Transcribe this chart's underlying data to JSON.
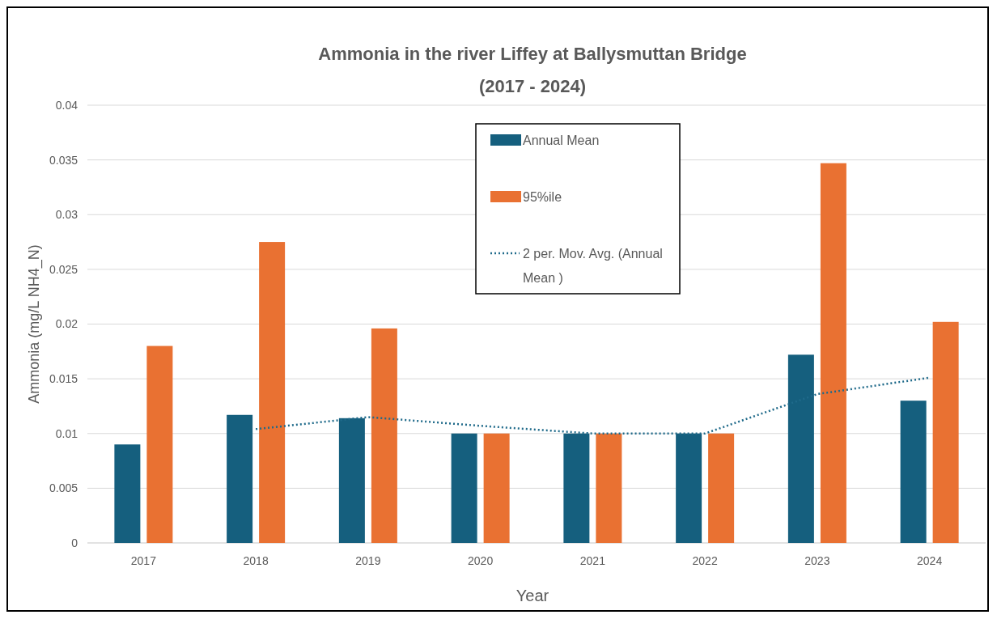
{
  "chart_data": {
    "type": "bar",
    "title": "Ammonia in the river Liffey at Ballysmuttan Bridge",
    "subtitle": "(2017 - 2024)",
    "xlabel": "Year",
    "ylabel": "Ammonia (mg/L NH4_N)",
    "categories": [
      "2017",
      "2018",
      "2019",
      "2020",
      "2021",
      "2022",
      "2023",
      "2024"
    ],
    "series": [
      {
        "name": "Annual Mean",
        "color": "#155f7e",
        "values": [
          0.009,
          0.0117,
          0.0114,
          0.01,
          0.01,
          0.01,
          0.0172,
          0.013
        ]
      },
      {
        "name": "95%ile",
        "color": "#e97132",
        "values": [
          0.018,
          0.0275,
          0.0196,
          0.01,
          0.01,
          0.01,
          0.0347,
          0.0202
        ]
      },
      {
        "name": "2 per. Mov. Avg. (Annual Mean )",
        "type": "line",
        "line_style": "dotted",
        "marker": "none",
        "color": "#1f6a8a",
        "values": [
          null,
          0.0104,
          0.0115,
          0.0107,
          0.01,
          0.01,
          0.0136,
          0.0151
        ]
      }
    ],
    "ylim": [
      0,
      0.04
    ],
    "yticks": [
      0,
      0.005,
      0.01,
      0.015,
      0.02,
      0.025,
      0.03,
      0.035,
      0.04
    ],
    "grid": "y",
    "legend": "top"
  }
}
